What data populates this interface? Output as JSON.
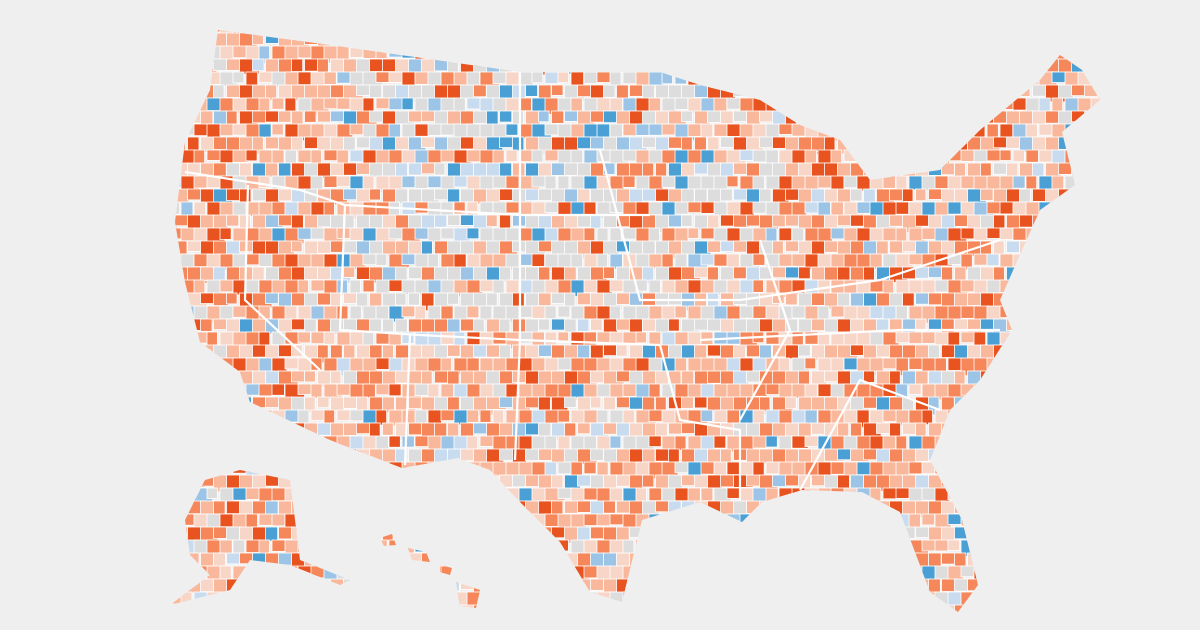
{
  "map": {
    "palette": [
      "#e8531f",
      "#f5875b",
      "#f9b89b",
      "#f7d6c8",
      "#dddddd",
      "#c9dcef",
      "#9cc4e6",
      "#4a9fd4"
    ]
  }
}
